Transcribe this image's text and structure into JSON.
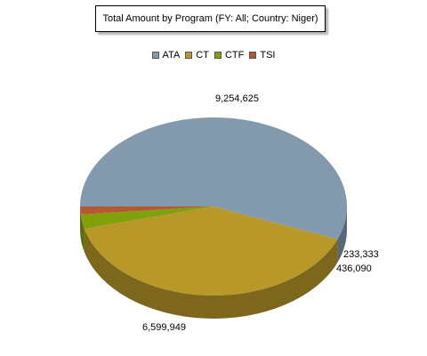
{
  "chart_data": {
    "type": "pie",
    "title": "Total Amount by Program (FY: All; Country: Niger)",
    "categories": [
      "ATA",
      "CT",
      "CTF",
      "TSI"
    ],
    "values": [
      9254625,
      6599949,
      436090,
      233333
    ],
    "value_labels": [
      "9,254,625",
      "6,599,949",
      "436,090",
      "233,333"
    ],
    "colors": [
      "#8299AE",
      "#B89829",
      "#80A10B",
      "#B35A34"
    ],
    "legend_position": "top-center"
  }
}
